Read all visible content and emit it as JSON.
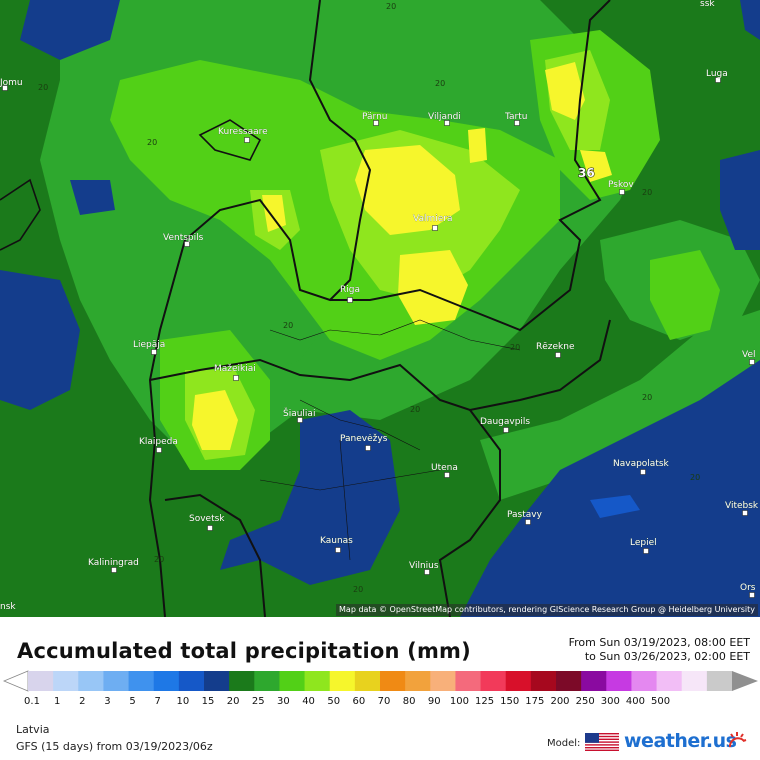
{
  "map": {
    "attribution": "Map data © OpenStreetMap contributors, rendering GIScience Research Group @ Heidelberg University",
    "cities": [
      {
        "name": "Pärnu",
        "icon": "city-marker-icon"
      },
      {
        "name": "Viljandi",
        "icon": "city-marker-icon"
      },
      {
        "name": "Tartu",
        "icon": "city-marker-icon"
      },
      {
        "name": "Kuressaare",
        "icon": "city-marker-icon"
      },
      {
        "name": "Luga",
        "icon": "city-marker-icon"
      },
      {
        "name": "Pskov",
        "icon": "city-marker-icon"
      },
      {
        "name": "Ventspils",
        "icon": "city-marker-icon"
      },
      {
        "name": "Valmiera",
        "icon": "city-marker-icon"
      },
      {
        "name": "Riga",
        "icon": "city-marker-icon"
      },
      {
        "name": "Liepāja",
        "icon": "city-marker-icon"
      },
      {
        "name": "Rēzekne",
        "icon": "city-marker-icon"
      },
      {
        "name": "Mažeikiai",
        "icon": "city-marker-icon"
      },
      {
        "name": "Šiauliai",
        "icon": "city-marker-icon"
      },
      {
        "name": "Daugavpils",
        "icon": "city-marker-icon"
      },
      {
        "name": "Klaipeda",
        "icon": "city-marker-icon"
      },
      {
        "name": "Panevėžys",
        "icon": "city-marker-icon"
      },
      {
        "name": "Navapolatsk",
        "icon": "city-marker-icon"
      },
      {
        "name": "Utena",
        "icon": "city-marker-icon"
      },
      {
        "name": "Vitebsk",
        "icon": "city-marker-icon"
      },
      {
        "name": "Sovetsk",
        "icon": "city-marker-icon"
      },
      {
        "name": "Pastavy",
        "icon": "city-marker-icon"
      },
      {
        "name": "Kaunas",
        "icon": "city-marker-icon"
      },
      {
        "name": "Lepiel",
        "icon": "city-marker-icon"
      },
      {
        "name": "Kaliningrad",
        "icon": "city-marker-icon"
      },
      {
        "name": "Vilnius",
        "icon": "city-marker-icon"
      },
      {
        "name": "Ors",
        "icon": "city-marker-icon"
      },
      {
        "name": "Vel",
        "icon": "city-marker-icon"
      },
      {
        "name": "Jomu",
        "icon": "city-marker-icon"
      },
      {
        "name": "nsk",
        "icon": ""
      },
      {
        "name": "ssk",
        "icon": ""
      }
    ],
    "contour_labels": [
      "20",
      "20",
      "20",
      "20",
      "20",
      "20",
      "20",
      "20",
      "20",
      "20",
      "20",
      "20"
    ],
    "max_label": "36"
  },
  "legend": {
    "title": "Accumulated total precipitation (mm)",
    "from_text": "From Sun 03/19/2023, 08:00 EET",
    "to_text": "to Sun 03/26/2023, 02:00 EET",
    "bins": [
      {
        "label": "0.1",
        "color": "#d8d4ec"
      },
      {
        "label": "1",
        "color": "#bcd6f8"
      },
      {
        "label": "2",
        "color": "#98c6f6"
      },
      {
        "label": "3",
        "color": "#6eaef2"
      },
      {
        "label": "5",
        "color": "#3f92ee"
      },
      {
        "label": "7",
        "color": "#1e78e6"
      },
      {
        "label": "10",
        "color": "#1558c8"
      },
      {
        "label": "15",
        "color": "#143d8c"
      },
      {
        "label": "20",
        "color": "#1b7a1b"
      },
      {
        "label": "25",
        "color": "#2ea82e"
      },
      {
        "label": "30",
        "color": "#52d017"
      },
      {
        "label": "40",
        "color": "#8fe61e"
      },
      {
        "label": "50",
        "color": "#f6f62c"
      },
      {
        "label": "60",
        "color": "#e8d21e"
      },
      {
        "label": "70",
        "color": "#f08a14"
      },
      {
        "label": "80",
        "color": "#f2a23c"
      },
      {
        "label": "90",
        "color": "#f8b07a"
      },
      {
        "label": "100",
        "color": "#f46a7c"
      },
      {
        "label": "125",
        "color": "#f23a5a"
      },
      {
        "label": "150",
        "color": "#d8102a"
      },
      {
        "label": "175",
        "color": "#a6081e"
      },
      {
        "label": "200",
        "color": "#7c0a28"
      },
      {
        "label": "250",
        "color": "#8a0aa0"
      },
      {
        "label": "300",
        "color": "#c63ae2"
      },
      {
        "label": "400",
        "color": "#e488f0"
      },
      {
        "label": "500",
        "color": "#f2bef6"
      },
      {
        "label": "",
        "color": "#f6e6f8"
      },
      {
        "label": "",
        "color": "#cacaca"
      }
    ],
    "low_arrow_color": "#ffffff",
    "high_arrow_color": "#909090"
  },
  "footer": {
    "region": "Latvia",
    "run_info": "GFS (15 days) from  03/19/2023/06z",
    "model_label": "Model:",
    "brand": "weather.us",
    "flag_icon": "us-flag-icon",
    "brand_icon": "sun-rays-icon"
  },
  "colors": {
    "green_dark": "#1b7a1b",
    "green": "#2ea82e",
    "green_light": "#52d017",
    "lime": "#8fe61e",
    "yellow": "#f6f62c",
    "blue_dark": "#143d8c",
    "blue": "#1558c8",
    "border": "#111111"
  }
}
